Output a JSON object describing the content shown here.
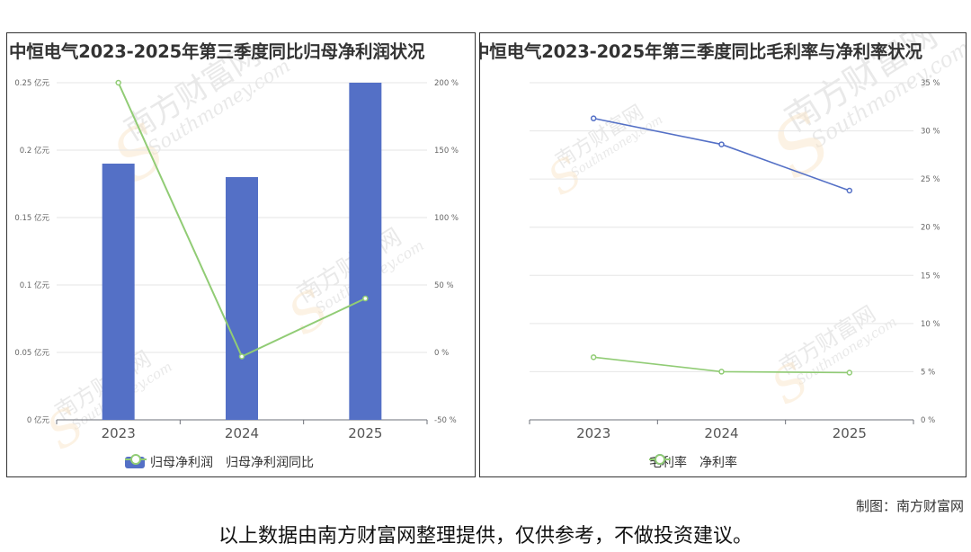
{
  "colors": {
    "bar": "#5470c6",
    "line_green": "#91cc75",
    "line_blue": "#5470c6",
    "axis": "#666666",
    "grid": "#e6e6e6",
    "watermark": "#cfcfcf",
    "watermark_orange": "#f5c98a"
  },
  "watermark": {
    "cn": "南方财富网",
    "en": "Southmoney.com"
  },
  "left": {
    "legend": {
      "bar": "归母净利润",
      "line": "归母净利润同比"
    },
    "chart_data": {
      "type": "bar",
      "title": "中恒电气2023-2025年第三季度同比归母净利润状况",
      "categories": [
        "2023",
        "2024",
        "2025"
      ],
      "series": [
        {
          "name": "归母净利润",
          "type": "bar",
          "axis": "left",
          "values": [
            0.19,
            0.18,
            0.25
          ]
        },
        {
          "name": "归母净利润同比",
          "type": "line",
          "axis": "right",
          "values": [
            200,
            -3,
            40
          ]
        }
      ],
      "y_left": {
        "ylim": [
          0,
          0.25
        ],
        "ticks": [
          "0 亿元",
          "0.05 亿元",
          "0.1 亿元",
          "0.15 亿元",
          "0.2 亿元",
          "0.25 亿元"
        ]
      },
      "y_right": {
        "ylim": [
          -50,
          200
        ],
        "ticks": [
          "-50 %",
          "0 %",
          "50 %",
          "100 %",
          "150 %",
          "200 %"
        ]
      },
      "grid": true
    }
  },
  "right": {
    "legend": {
      "a": "毛利率",
      "b": "净利率"
    },
    "chart_data": {
      "type": "line",
      "title": "中恒电气2023-2025年第三季度同比毛利率与净利率状况",
      "categories": [
        "2023",
        "2024",
        "2025"
      ],
      "series": [
        {
          "name": "毛利率",
          "values": [
            31.3,
            28.6,
            23.8
          ]
        },
        {
          "name": "净利率",
          "values": [
            6.5,
            5.0,
            4.9
          ]
        }
      ],
      "y_right": {
        "ylim": [
          0,
          35
        ],
        "ticks": [
          "0 %",
          "5 %",
          "10 %",
          "15 %",
          "20 %",
          "25 %",
          "30 %",
          "35 %"
        ]
      },
      "grid": true
    }
  },
  "footer": {
    "credit": "制图：南方财富网",
    "disclaimer": "以上数据由南方财富网整理提供，仅供参考，不做投资建议。"
  }
}
